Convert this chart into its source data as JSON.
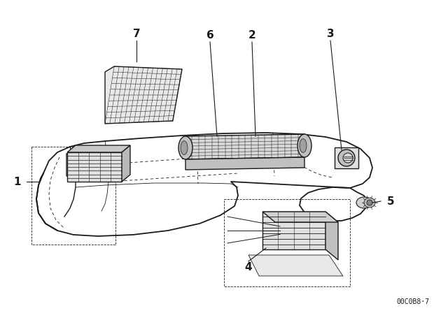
{
  "bg_color": "#ffffff",
  "line_color": "#1a1a1a",
  "part_number_text": "00C0B8·7",
  "figsize": [
    6.4,
    4.48
  ],
  "dpi": 100
}
